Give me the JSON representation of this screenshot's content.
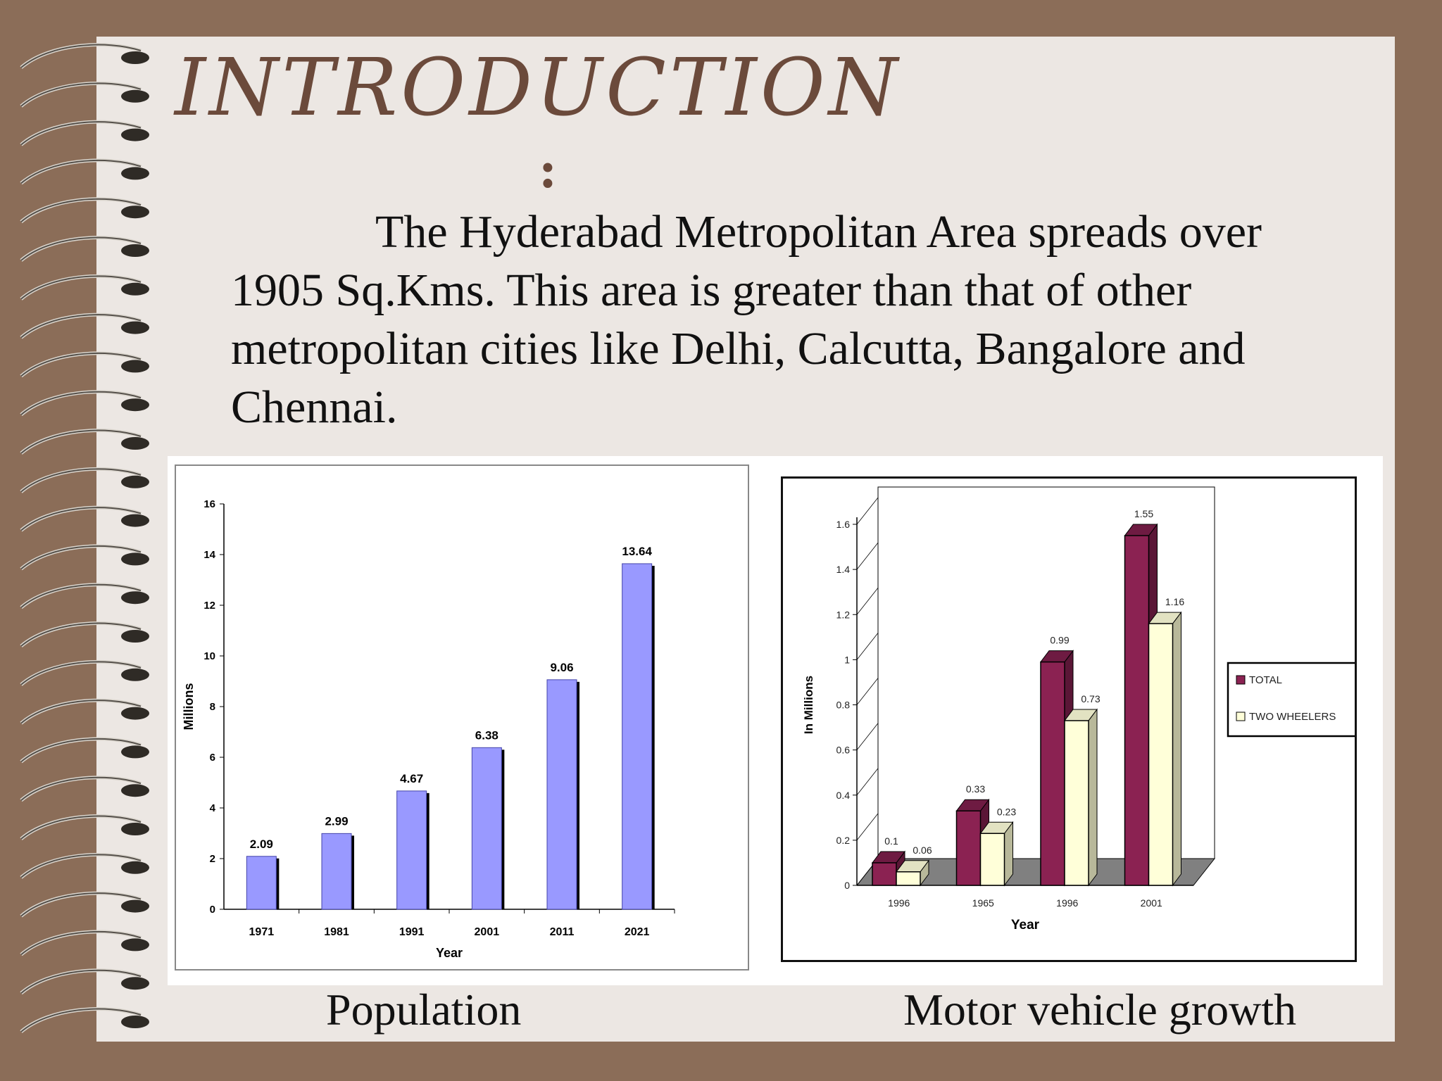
{
  "slide": {
    "title": "INTRODUCTION",
    "title_suffix": ":",
    "body": "The Hyderabad Metropolitan Area spreads over 1905 Sq.Kms. This area is greater than that of other metropolitan cities like Delhi, Calcutta, Bangalore and Chennai.",
    "caption_left": "Population",
    "caption_right": "Motor vehicle growth"
  },
  "colors": {
    "background": "#8b6d58",
    "slide": "#ece7e3",
    "title": "#6b4a3b",
    "population_bar": "#9999ff",
    "vehicle_total": "#8b2252",
    "vehicle_two_wheelers": "#ffffd9",
    "floor": "#808080"
  },
  "chart_data": [
    {
      "type": "bar",
      "categories": [
        "1971",
        "1981",
        "1991",
        "2001",
        "2011",
        "2021"
      ],
      "values": [
        2.09,
        2.99,
        4.67,
        6.38,
        9.06,
        13.64
      ],
      "value_labels": [
        "2.09",
        "2.99",
        "4.67",
        "6.38",
        "9.06",
        "13.64"
      ],
      "xlabel": "Year",
      "ylabel": "Millions",
      "ylim": [
        0,
        16
      ],
      "yticks": [
        "0",
        "2",
        "4",
        "6",
        "8",
        "10",
        "12",
        "14",
        "16"
      ],
      "grid": false,
      "legend": "none"
    },
    {
      "type": "bar",
      "categories": [
        "1996",
        "1965",
        "1996",
        "2001"
      ],
      "series": [
        {
          "name": "TOTAL",
          "values": [
            0.1,
            0.33,
            0.99,
            1.55
          ],
          "labels": [
            "0.1",
            "0.33",
            "0.99",
            "1.55"
          ]
        },
        {
          "name": "TWO WHEELERS",
          "values": [
            0.06,
            0.23,
            0.73,
            1.16
          ],
          "labels": [
            "0.06",
            "0.23",
            "0.73",
            "1.16"
          ]
        }
      ],
      "xlabel": "Year",
      "ylabel": "In Millions",
      "ylim": [
        0,
        1.6
      ],
      "yticks": [
        "0",
        "0.2",
        "0.4",
        "0.6",
        "0.8",
        "1",
        "1.2",
        "1.4",
        "1.6"
      ],
      "grid": false,
      "legend": "right",
      "style": "3d"
    }
  ]
}
